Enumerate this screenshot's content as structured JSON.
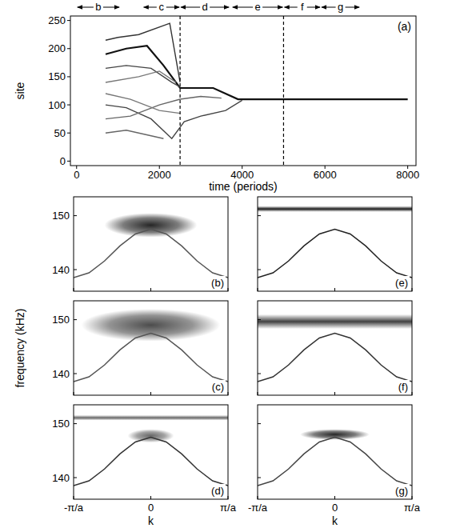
{
  "chart_data": [
    {
      "type": "line",
      "label": "(a)",
      "xlabel": "time (periods)",
      "ylabel": "site",
      "xlim": [
        -150,
        8200
      ],
      "ylim": [
        -8,
        258
      ],
      "xticks": [
        0,
        2000,
        4000,
        6000,
        8000
      ],
      "yticks": [
        0,
        50,
        100,
        150,
        200,
        250
      ],
      "vlines": [
        2500,
        5000
      ],
      "regions": [
        {
          "label": "b",
          "x": [
            0,
            1050
          ]
        },
        {
          "label": "c",
          "x": [
            1600,
            2500
          ]
        },
        {
          "label": "d",
          "x": [
            2500,
            3700
          ]
        },
        {
          "label": "e",
          "x": [
            3750,
            5000
          ]
        },
        {
          "label": "f",
          "x": [
            5000,
            5900
          ]
        },
        {
          "label": "g",
          "x": [
            5900,
            6850
          ]
        }
      ],
      "series": [
        {
          "color": "#111111",
          "x": [
            700,
            1200,
            1700,
            2100,
            2500,
            3300,
            3900,
            5000,
            6500,
            8000
          ],
          "values": [
            190,
            200,
            205,
            170,
            130,
            130,
            110,
            110,
            110,
            110
          ]
        },
        {
          "color": "#333333",
          "x": [
            700,
            1000,
            1500,
            2250,
            2500
          ],
          "values": [
            215,
            220,
            225,
            245,
            140
          ]
        },
        {
          "color": "#444444",
          "x": [
            700,
            1200,
            1800,
            2300,
            2500
          ],
          "values": [
            165,
            170,
            165,
            140,
            132
          ]
        },
        {
          "color": "#444444",
          "x": [
            700,
            1200,
            1800,
            2300,
            2600,
            3000,
            3600,
            4000
          ],
          "values": [
            100,
            95,
            75,
            40,
            70,
            80,
            90,
            108
          ]
        },
        {
          "color": "#666666",
          "x": [
            700,
            1300,
            2000,
            2500,
            3000,
            3500
          ],
          "values": [
            75,
            80,
            100,
            110,
            115,
            112
          ]
        },
        {
          "color": "#666666",
          "x": [
            700,
            1200,
            1800,
            2100
          ],
          "values": [
            50,
            55,
            45,
            40
          ]
        },
        {
          "color": "#777777",
          "x": [
            700,
            1300,
            2000,
            2500
          ],
          "values": [
            120,
            110,
            90,
            85
          ]
        },
        {
          "color": "#777777",
          "x": [
            700,
            1500,
            2000,
            2400
          ],
          "values": [
            140,
            150,
            160,
            140
          ]
        }
      ]
    },
    {
      "type": "spectrum",
      "label": "(b)",
      "ylabel": "frequency (kHz)",
      "xlim": [
        -1,
        1
      ],
      "ylim": [
        136,
        153.5
      ],
      "xticks": [
        {
          "value": -1,
          "label": "-π/a"
        },
        0,
        {
          "value": 1,
          "label": "π/a"
        }
      ],
      "yticks": [
        140,
        150
      ],
      "tick_labels": "y",
      "series": [
        {
          "color": "#555555",
          "x": [
            -1,
            -0.8,
            -0.6,
            -0.4,
            -0.2,
            0,
            0.2,
            0.4,
            0.6,
            0.8,
            1
          ],
          "values": [
            138.5,
            139.4,
            141.6,
            144.4,
            146.6,
            147.5,
            146.6,
            144.4,
            141.6,
            139.4,
            138.5
          ]
        }
      ],
      "bands": [
        {
          "k": [
            -0.6,
            0.6
          ],
          "f": [
            146,
            150.5
          ],
          "level": 0.85
        }
      ]
    },
    {
      "type": "spectrum",
      "label": "(c)",
      "xlim": [
        -1,
        1
      ],
      "ylim": [
        136,
        153.5
      ],
      "xticks": [
        {
          "value": -1,
          "label": "-π/a"
        },
        0,
        {
          "value": 1,
          "label": "π/a"
        }
      ],
      "yticks": [
        140,
        150
      ],
      "tick_labels": "y",
      "series": [
        {
          "color": "#555555",
          "x": [
            -1,
            -0.8,
            -0.6,
            -0.4,
            -0.2,
            0,
            0.2,
            0.4,
            0.6,
            0.8,
            1
          ],
          "values": [
            138.5,
            139.4,
            141.6,
            144.4,
            146.6,
            147.5,
            146.6,
            144.4,
            141.6,
            139.4,
            138.5
          ]
        }
      ],
      "bands": [
        {
          "k": [
            -0.9,
            0.9
          ],
          "f": [
            146,
            152
          ],
          "level": 0.7
        }
      ]
    },
    {
      "type": "spectrum",
      "label": "(d)",
      "xlabel": "k",
      "xlim": [
        -1,
        1
      ],
      "ylim": [
        136,
        153.5
      ],
      "xticks": [
        {
          "value": -1,
          "label": "-π/a"
        },
        0,
        {
          "value": 1,
          "label": "π/a"
        }
      ],
      "yticks": [
        140,
        150
      ],
      "tick_labels": true,
      "series": [
        {
          "color": "#333333",
          "x": [
            -1,
            -0.8,
            -0.6,
            -0.4,
            -0.2,
            0,
            0.2,
            0.4,
            0.6,
            0.8,
            1
          ],
          "values": [
            138.5,
            139.4,
            141.6,
            144.4,
            146.6,
            147.5,
            146.6,
            144.4,
            141.6,
            139.4,
            138.5
          ]
        }
      ],
      "bands": [
        {
          "k": [
            -1,
            1
          ],
          "f": [
            150.6,
            151.6
          ],
          "level": 0.6
        },
        {
          "k": [
            -0.3,
            0.3
          ],
          "f": [
            146.5,
            149
          ],
          "level": 0.6
        }
      ]
    },
    {
      "type": "spectrum",
      "label": "(e)",
      "xlim": [
        -1,
        1
      ],
      "ylim": [
        136,
        153.5
      ],
      "xticks": [
        {
          "value": -1,
          "label": "-π/a"
        },
        0,
        {
          "value": 1,
          "label": "π/a"
        }
      ],
      "yticks": [
        140,
        150
      ],
      "tick_labels": false,
      "series": [
        {
          "color": "#222222",
          "x": [
            -1,
            -0.8,
            -0.6,
            -0.4,
            -0.2,
            0,
            0.2,
            0.4,
            0.6,
            0.8,
            1
          ],
          "values": [
            138.5,
            139.4,
            141.6,
            144.4,
            146.6,
            147.5,
            146.6,
            144.4,
            141.6,
            139.4,
            138.5
          ]
        }
      ],
      "bands": [
        {
          "k": [
            -1,
            1
          ],
          "f": [
            150.7,
            151.8
          ],
          "level": 0.9
        }
      ]
    },
    {
      "type": "spectrum",
      "label": "(f)",
      "xlim": [
        -1,
        1
      ],
      "ylim": [
        136,
        153.5
      ],
      "xticks": [
        {
          "value": -1,
          "label": "-π/a"
        },
        0,
        {
          "value": 1,
          "label": "π/a"
        }
      ],
      "yticks": [
        140,
        150
      ],
      "tick_labels": false,
      "series": [
        {
          "color": "#333333",
          "x": [
            -1,
            -0.8,
            -0.6,
            -0.4,
            -0.2,
            0,
            0.2,
            0.4,
            0.6,
            0.8,
            1
          ],
          "values": [
            138.5,
            139.4,
            141.6,
            144.4,
            146.6,
            147.5,
            146.6,
            144.4,
            141.6,
            139.4,
            138.5
          ]
        }
      ],
      "bands": [
        {
          "k": [
            -1,
            1
          ],
          "f": [
            148.3,
            151
          ],
          "level": 0.75
        }
      ]
    },
    {
      "type": "spectrum",
      "label": "(g)",
      "xlabel": "k",
      "xlim": [
        -1,
        1
      ],
      "ylim": [
        136,
        153.5
      ],
      "xticks": [
        {
          "value": -1,
          "label": "-π/a"
        },
        0,
        {
          "value": 1,
          "label": "π/a"
        }
      ],
      "yticks": [
        140,
        150
      ],
      "tick_labels": "x",
      "series": [
        {
          "color": "#444444",
          "x": [
            -1,
            -0.8,
            -0.6,
            -0.4,
            -0.2,
            0,
            0.2,
            0.4,
            0.6,
            0.8,
            1
          ],
          "values": [
            138.5,
            139.4,
            141.6,
            144.4,
            146.6,
            147.5,
            146.6,
            144.4,
            141.6,
            139.4,
            138.5
          ]
        }
      ],
      "bands": [
        {
          "k": [
            -0.45,
            0.45
          ],
          "f": [
            147,
            149
          ],
          "level": 0.85
        }
      ]
    }
  ]
}
